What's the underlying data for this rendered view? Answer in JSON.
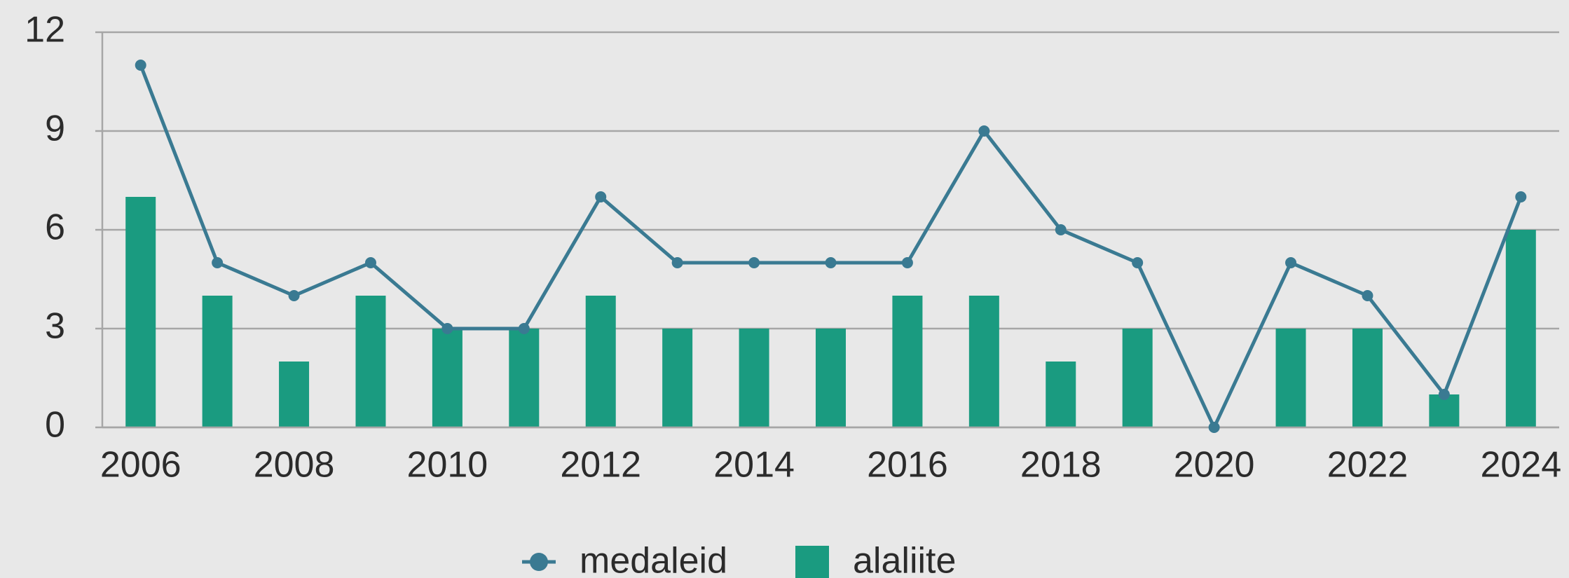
{
  "chart_data": {
    "type": "combo",
    "x": [
      2006,
      2007,
      2008,
      2009,
      2010,
      2011,
      2012,
      2013,
      2014,
      2015,
      2016,
      2017,
      2018,
      2019,
      2020,
      2021,
      2022,
      2023,
      2024
    ],
    "xlim": [
      2005.5,
      2024.5
    ],
    "xticks": [
      2006,
      2008,
      2010,
      2012,
      2014,
      2016,
      2018,
      2020,
      2022,
      2024
    ],
    "ylim": [
      0,
      12
    ],
    "yticks": [
      0,
      3,
      6,
      9,
      12
    ],
    "grid": true,
    "legend": "bottom",
    "series": [
      {
        "name": "medaleid",
        "type": "line",
        "color": "#3a7a92",
        "values": [
          11,
          5,
          4,
          5,
          3,
          3,
          7,
          5,
          5,
          5,
          5,
          9,
          6,
          5,
          0,
          5,
          4,
          1,
          7
        ]
      },
      {
        "name": "alaliite",
        "type": "bar",
        "color": "#1a9b80",
        "values": [
          7,
          4,
          2,
          4,
          3,
          3,
          4,
          3,
          3,
          3,
          4,
          4,
          2,
          3,
          0,
          3,
          3,
          1,
          6
        ]
      }
    ]
  }
}
